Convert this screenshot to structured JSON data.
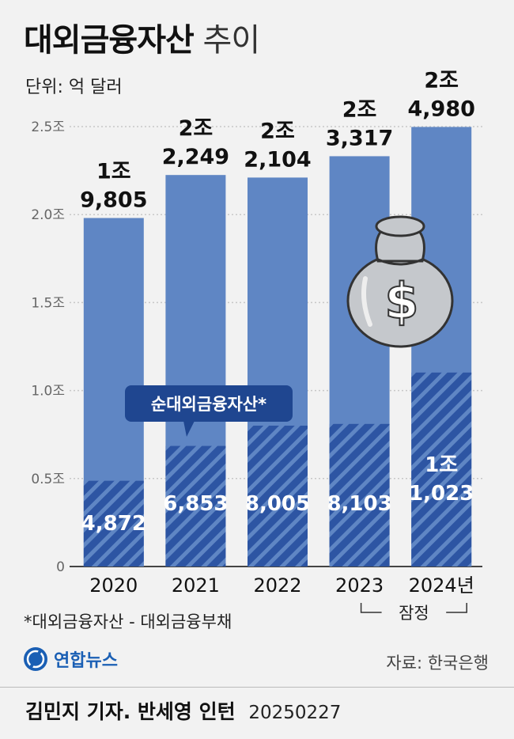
{
  "title_bold": "대외금융자산",
  "title_light": "추이",
  "unit_label": "단위: 억 달러",
  "chart_data": {
    "type": "bar",
    "categories": [
      "2020",
      "2021",
      "2022",
      "2023",
      "2024년"
    ],
    "series": [
      {
        "name": "대외금융자산",
        "values": [
          19805,
          22249,
          22104,
          23317,
          24980
        ],
        "labels": [
          [
            "1조",
            "9,805"
          ],
          [
            "2조",
            "2,249"
          ],
          [
            "2조",
            "2,104"
          ],
          [
            "2조",
            "3,317"
          ],
          [
            "2조",
            "4,980"
          ]
        ]
      },
      {
        "name": "순대외금융자산*",
        "values": [
          4872,
          6853,
          8005,
          8103,
          11023
        ],
        "labels": [
          [
            "4,872"
          ],
          [
            "6,853"
          ],
          [
            "8,005"
          ],
          [
            "8,103"
          ],
          [
            "1조",
            "1,023"
          ]
        ]
      }
    ],
    "y_ticks": [
      {
        "value": 0,
        "label": "0"
      },
      {
        "value": 5000,
        "label": "0.5조"
      },
      {
        "value": 10000,
        "label": "1.0조"
      },
      {
        "value": 15000,
        "label": "1.5조"
      },
      {
        "value": 20000,
        "label": "2.0조"
      },
      {
        "value": 25000,
        "label": "2.5조"
      }
    ],
    "ylim": [
      0,
      25000
    ],
    "grid": true,
    "annotation": "잠정",
    "annotation_covers": [
      "2023",
      "2024년"
    ]
  },
  "colors": {
    "total_bar": "#5f86c4",
    "net_bar": "#2d55a3",
    "hatch": "#5f86c4",
    "callout": "#1f4690",
    "money_bag": "#c5c8cc"
  },
  "money_bag_icon": "money-bag-dollar-icon",
  "footnote": "*대외금융자산 - 대외금융부채",
  "logo_text": "연합뉴스",
  "source": "자료: 한국은행",
  "credit_name": "김민지 기자. 반세영 인턴",
  "credit_date": "20250227"
}
